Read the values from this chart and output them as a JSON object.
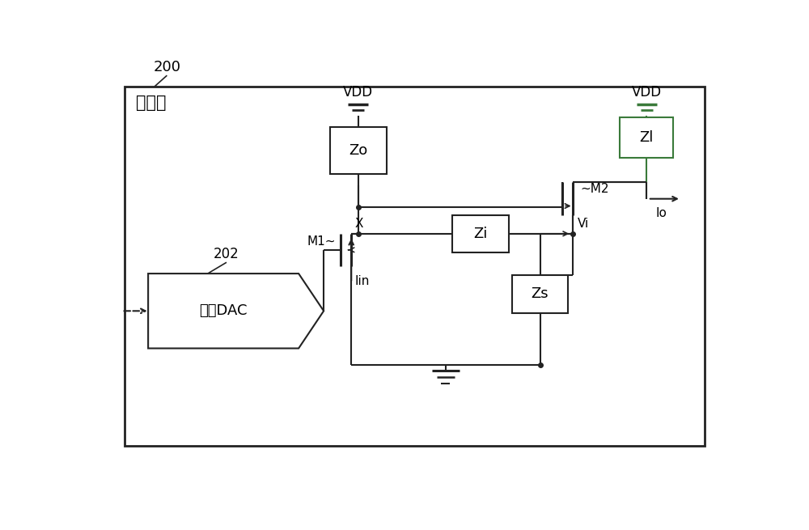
{
  "bg_color": "#ffffff",
  "line_color": "#222222",
  "green_color": "#3a7a3a",
  "label_200": "200",
  "label_202": "202",
  "label_transmitter": "发射机",
  "label_VDD_left": "VDD",
  "label_VDD_right": "VDD",
  "label_Zo": "Zo",
  "label_Zl": "Zl",
  "label_Zi": "Zi",
  "label_Zs": "Zs",
  "label_M1": "M1~",
  "label_M2": "~M2",
  "label_DAC": "单端DAC",
  "label_X": "X",
  "label_Vi": "Vi",
  "label_Io": "Io",
  "label_Iin": "Iin",
  "figsize": [
    10.0,
    6.55
  ],
  "dpi": 100
}
